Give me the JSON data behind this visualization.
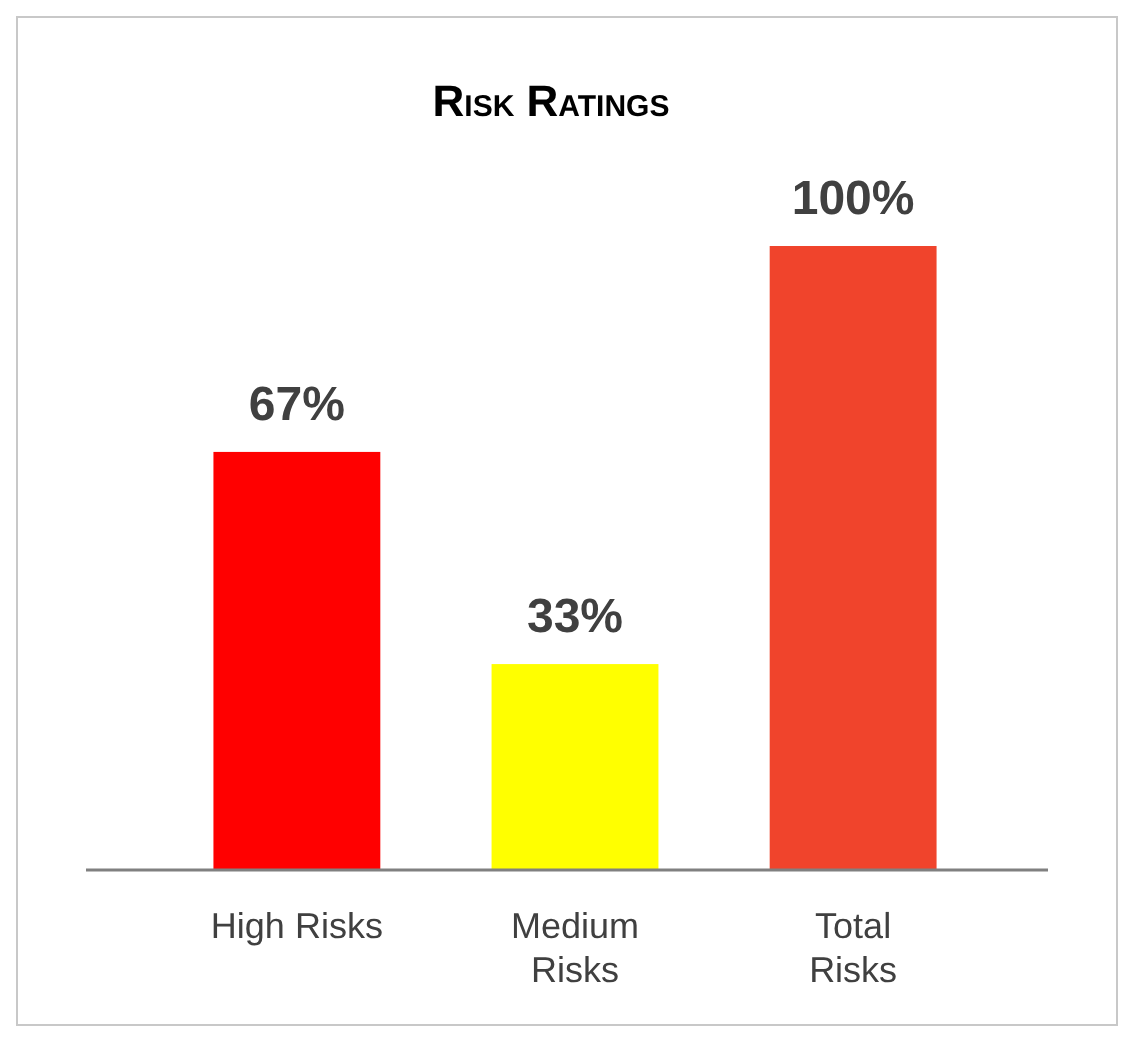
{
  "chart_data": {
    "type": "bar",
    "title": "Risk Ratings",
    "categories": [
      "High Risks",
      "Medium Risks",
      "Total Risks"
    ],
    "values": [
      67,
      33,
      100
    ],
    "colors": [
      "#ff0000",
      "#ffff00",
      "#f0442c"
    ],
    "value_labels": [
      "67%",
      "33%",
      "100%"
    ]
  }
}
